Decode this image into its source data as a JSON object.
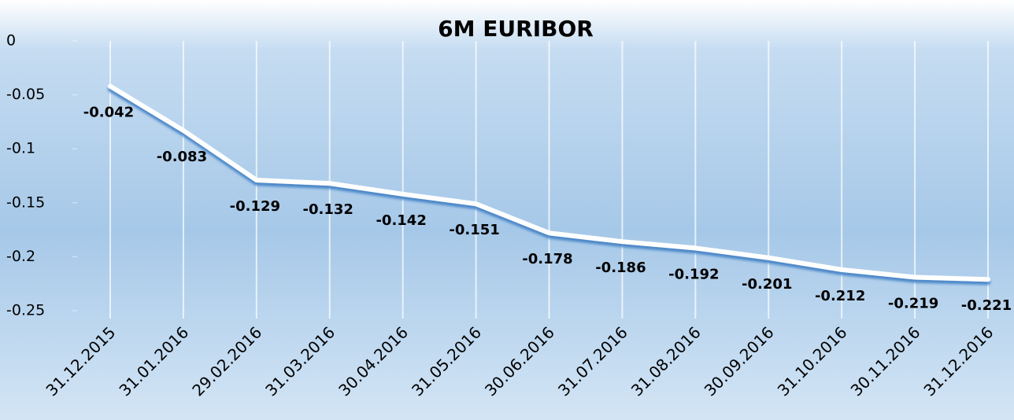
{
  "chart_data": {
    "type": "line",
    "title": "6M EURIBOR",
    "categories": [
      "31.12.2015",
      "31.01.2016",
      "29.02.2016",
      "31.03.2016",
      "30.04.2016",
      "31.05.2016",
      "30.06.2016",
      "31.07.2016",
      "31.08.2016",
      "30.09.2016",
      "31.10.2016",
      "30.11.2016",
      "31.12.2016"
    ],
    "values": [
      -0.042,
      -0.083,
      -0.129,
      -0.132,
      -0.142,
      -0.151,
      -0.178,
      -0.186,
      -0.192,
      -0.201,
      -0.212,
      -0.219,
      -0.221
    ],
    "color": "#ffffff",
    "ylim": [
      -0.25,
      0
    ],
    "yticks": [
      0,
      -0.05,
      -0.1,
      -0.15,
      -0.2,
      -0.25
    ]
  }
}
